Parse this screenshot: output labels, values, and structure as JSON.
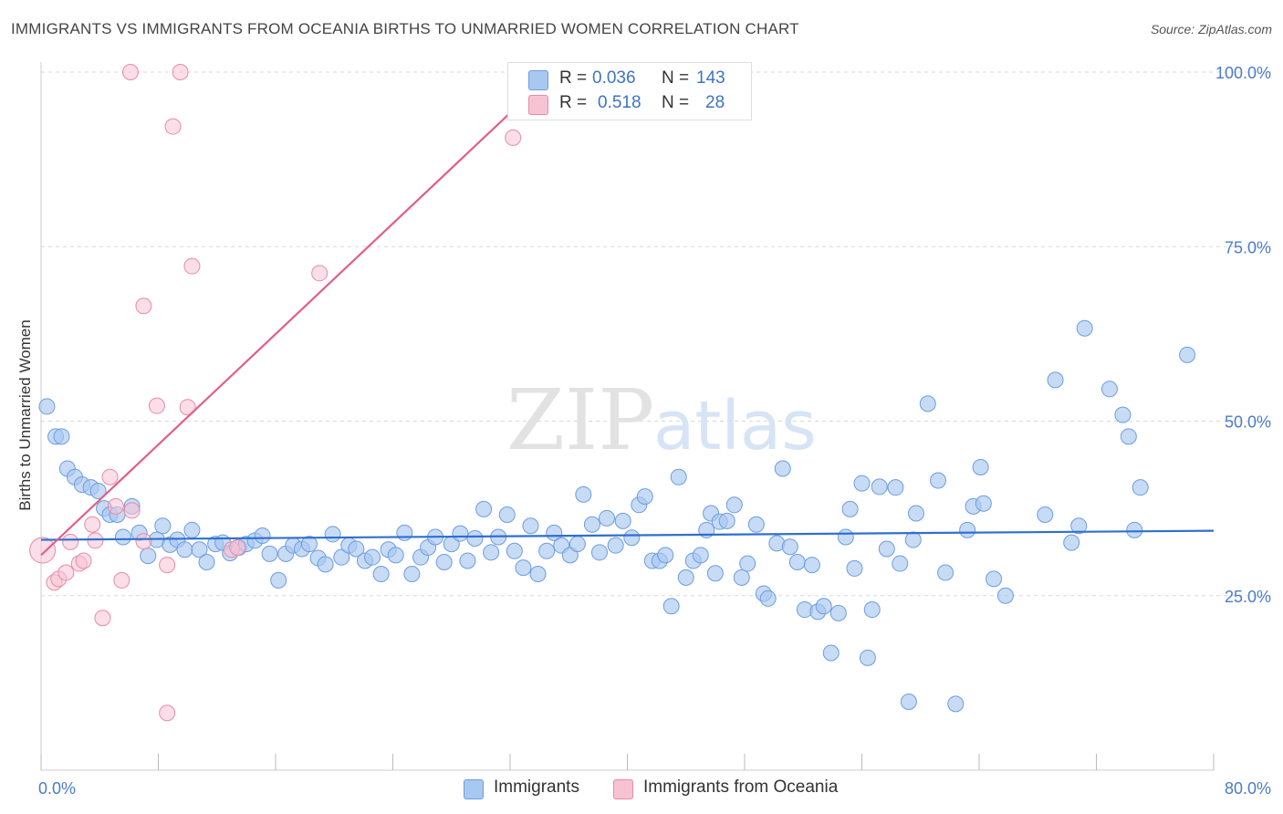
{
  "header": {
    "title": "IMMIGRANTS VS IMMIGRANTS FROM OCEANIA BIRTHS TO UNMARRIED WOMEN CORRELATION CHART",
    "source": "Source: ZipAtlas.com"
  },
  "watermark": {
    "zip": "ZIP",
    "atlas": "atlas"
  },
  "legend": {
    "rows": [
      {
        "r_label": "R =",
        "r_value": "0.036",
        "n_label": "N =",
        "n_value": "143"
      },
      {
        "r_label": "R =",
        "r_value": "0.518",
        "n_label": "N =",
        "n_value": "28"
      }
    ]
  },
  "colors": {
    "blue_fill": "#a9c8ef",
    "blue_stroke": "#6c9de0",
    "blue_line": "#2f6fd0",
    "pink_fill": "#f7c3d3",
    "pink_stroke": "#e98aa8",
    "pink_line": "#e35d8a",
    "axis_text": "#4a7cc9",
    "grid": "#d8d8d8"
  },
  "chart_data": {
    "type": "scatter",
    "title": "IMMIGRANTS VS IMMIGRANTS FROM OCEANIA BIRTHS TO UNMARRIED WOMEN CORRELATION CHART",
    "xlabel": "",
    "ylabel": "Births to Unmarried Women",
    "xlim": [
      0,
      80
    ],
    "ylim": [
      0,
      105
    ],
    "x_tick_labels": [
      "0.0%",
      "80.0%"
    ],
    "y_ticks": [
      25,
      50,
      75,
      100
    ],
    "y_tick_labels": [
      "25.0%",
      "50.0%",
      "75.0%",
      "100.0%"
    ],
    "grid": true,
    "legend_placement": "bottom",
    "series": [
      {
        "name": "Immigrants",
        "r": 0.036,
        "n": 143,
        "trend": {
          "x": [
            0,
            80
          ],
          "y": [
            33.0,
            34.3
          ]
        },
        "points": [
          [
            0.4,
            52.1
          ],
          [
            1.0,
            47.8
          ],
          [
            1.4,
            47.8
          ],
          [
            1.8,
            43.2
          ],
          [
            2.3,
            42.0
          ],
          [
            2.8,
            40.9
          ],
          [
            3.4,
            40.5
          ],
          [
            3.9,
            40.0
          ],
          [
            4.3,
            37.5
          ],
          [
            4.7,
            36.6
          ],
          [
            5.2,
            36.6
          ],
          [
            5.6,
            33.4
          ],
          [
            6.2,
            37.8
          ],
          [
            6.7,
            34.0
          ],
          [
            7.3,
            30.7
          ],
          [
            7.9,
            33.0
          ],
          [
            8.3,
            35.0
          ],
          [
            8.8,
            32.3
          ],
          [
            9.3,
            33.0
          ],
          [
            9.8,
            31.6
          ],
          [
            10.3,
            34.4
          ],
          [
            10.8,
            31.6
          ],
          [
            11.3,
            29.8
          ],
          [
            11.9,
            32.4
          ],
          [
            12.4,
            32.6
          ],
          [
            12.9,
            31.1
          ],
          [
            13.5,
            31.9
          ],
          [
            14.0,
            32.4
          ],
          [
            14.6,
            32.9
          ],
          [
            15.1,
            33.6
          ],
          [
            15.6,
            31.0
          ],
          [
            16.2,
            27.2
          ],
          [
            16.7,
            31.0
          ],
          [
            17.2,
            32.2
          ],
          [
            17.8,
            31.7
          ],
          [
            18.3,
            32.4
          ],
          [
            18.9,
            30.4
          ],
          [
            19.4,
            29.5
          ],
          [
            19.9,
            33.8
          ],
          [
            20.5,
            30.5
          ],
          [
            21.0,
            32.2
          ],
          [
            21.5,
            31.7
          ],
          [
            22.1,
            30.0
          ],
          [
            22.6,
            30.5
          ],
          [
            23.2,
            28.1
          ],
          [
            23.7,
            31.6
          ],
          [
            24.2,
            30.8
          ],
          [
            24.8,
            34.0
          ],
          [
            25.3,
            28.1
          ],
          [
            25.9,
            30.5
          ],
          [
            26.4,
            31.9
          ],
          [
            26.9,
            33.4
          ],
          [
            27.5,
            29.8
          ],
          [
            28.0,
            32.4
          ],
          [
            28.6,
            33.9
          ],
          [
            29.1,
            30.0
          ],
          [
            29.6,
            33.2
          ],
          [
            30.2,
            37.4
          ],
          [
            30.7,
            31.2
          ],
          [
            31.2,
            33.4
          ],
          [
            31.8,
            36.6
          ],
          [
            32.3,
            31.4
          ],
          [
            32.9,
            29.0
          ],
          [
            33.4,
            35.0
          ],
          [
            33.9,
            28.1
          ],
          [
            34.5,
            31.4
          ],
          [
            35.0,
            34.0
          ],
          [
            35.5,
            32.2
          ],
          [
            36.1,
            30.8
          ],
          [
            36.6,
            32.4
          ],
          [
            37.0,
            39.5
          ],
          [
            37.6,
            35.2
          ],
          [
            38.1,
            31.2
          ],
          [
            38.6,
            36.1
          ],
          [
            39.2,
            32.2
          ],
          [
            39.7,
            35.7
          ],
          [
            40.3,
            33.3
          ],
          [
            40.8,
            38.0
          ],
          [
            41.2,
            39.2
          ],
          [
            41.7,
            30.0
          ],
          [
            42.2,
            30.0
          ],
          [
            42.6,
            30.8
          ],
          [
            43.0,
            23.5
          ],
          [
            43.5,
            42.0
          ],
          [
            44.0,
            27.6
          ],
          [
            44.5,
            30.0
          ],
          [
            45.0,
            30.8
          ],
          [
            45.4,
            34.4
          ],
          [
            45.7,
            36.8
          ],
          [
            46.0,
            28.2
          ],
          [
            46.3,
            35.6
          ],
          [
            46.8,
            35.7
          ],
          [
            47.3,
            38.0
          ],
          [
            47.8,
            27.6
          ],
          [
            48.2,
            29.6
          ],
          [
            48.8,
            35.2
          ],
          [
            49.3,
            25.3
          ],
          [
            49.6,
            24.6
          ],
          [
            50.2,
            32.5
          ],
          [
            50.6,
            43.2
          ],
          [
            51.1,
            32.0
          ],
          [
            51.6,
            29.8
          ],
          [
            52.1,
            23.0
          ],
          [
            52.6,
            29.4
          ],
          [
            53.0,
            22.7
          ],
          [
            53.4,
            23.5
          ],
          [
            53.9,
            16.8
          ],
          [
            54.4,
            22.5
          ],
          [
            54.9,
            33.4
          ],
          [
            55.2,
            37.4
          ],
          [
            55.5,
            28.9
          ],
          [
            56.0,
            41.1
          ],
          [
            56.4,
            16.1
          ],
          [
            56.7,
            23.0
          ],
          [
            57.2,
            40.6
          ],
          [
            57.7,
            31.7
          ],
          [
            58.3,
            40.5
          ],
          [
            58.6,
            29.6
          ],
          [
            59.2,
            9.8
          ],
          [
            59.5,
            33.0
          ],
          [
            59.7,
            36.8
          ],
          [
            60.5,
            52.5
          ],
          [
            61.2,
            41.5
          ],
          [
            61.7,
            28.3
          ],
          [
            62.4,
            9.5
          ],
          [
            63.2,
            34.4
          ],
          [
            63.6,
            37.8
          ],
          [
            64.1,
            43.4
          ],
          [
            64.3,
            38.2
          ],
          [
            65.0,
            27.4
          ],
          [
            65.8,
            25.0
          ],
          [
            68.5,
            36.6
          ],
          [
            69.2,
            55.9
          ],
          [
            70.3,
            32.6
          ],
          [
            70.8,
            35.0
          ],
          [
            71.2,
            63.3
          ],
          [
            72.9,
            54.6
          ],
          [
            73.8,
            50.9
          ],
          [
            74.2,
            47.8
          ],
          [
            74.6,
            34.4
          ],
          [
            75.0,
            40.5
          ],
          [
            78.2,
            59.5
          ]
        ]
      },
      {
        "name": "Immigrants from Oceania",
        "r": 0.518,
        "n": 28,
        "trend": {
          "x": [
            0,
            34.2
          ],
          "y": [
            30.8,
            98.5
          ]
        },
        "points": [
          [
            0.1,
            31.5
          ],
          [
            0.9,
            26.9
          ],
          [
            1.2,
            27.4
          ],
          [
            1.7,
            28.3
          ],
          [
            2.0,
            32.7
          ],
          [
            2.6,
            29.6
          ],
          [
            2.9,
            30.0
          ],
          [
            3.5,
            35.2
          ],
          [
            3.7,
            32.9
          ],
          [
            4.2,
            21.8
          ],
          [
            4.7,
            42.0
          ],
          [
            5.1,
            37.8
          ],
          [
            5.5,
            27.2
          ],
          [
            6.2,
            37.2
          ],
          [
            6.1,
            100.0
          ],
          [
            7.0,
            32.8
          ],
          [
            7.0,
            66.5
          ],
          [
            7.9,
            52.2
          ],
          [
            8.6,
            8.2
          ],
          [
            8.6,
            29.4
          ],
          [
            9.0,
            92.2
          ],
          [
            9.5,
            100.0
          ],
          [
            10.0,
            52.0
          ],
          [
            10.3,
            72.2
          ],
          [
            13.0,
            31.6
          ],
          [
            13.4,
            31.9
          ],
          [
            19.0,
            71.2
          ],
          [
            32.2,
            90.6
          ]
        ]
      }
    ]
  },
  "bottom_legend": {
    "items": [
      {
        "label": "Immigrants"
      },
      {
        "label": "Immigrants from Oceania"
      }
    ]
  }
}
